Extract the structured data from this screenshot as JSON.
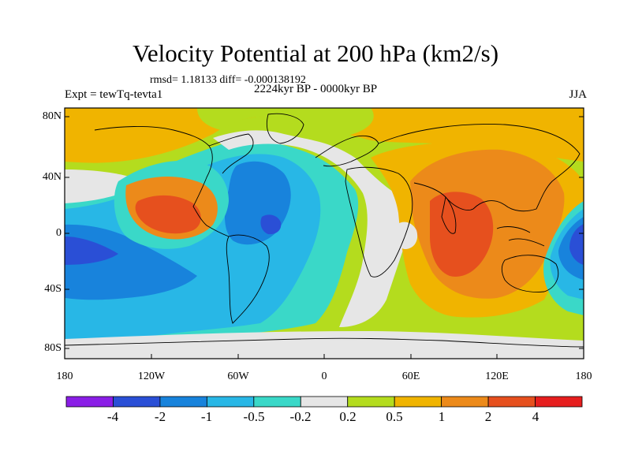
{
  "title": "Velocity Potential at 200 hPa (km2/s)",
  "stats": "rmsd= 1.18133 diff= -0.000138192",
  "experiment": "Expt = tewTq-tevta1",
  "period": "2224kyr BP - 0000kyr BP",
  "season": "JJA",
  "lat_labels": [
    "80N",
    "40N",
    "0",
    "40S",
    "80S"
  ],
  "lon_labels": [
    "180",
    "120W",
    "60W",
    "0",
    "60E",
    "120E",
    "180"
  ],
  "colorbar": {
    "labels": [
      "-4",
      "-2",
      "-1",
      "-0.5",
      "-0.2",
      "0.2",
      "0.5",
      "1",
      "2",
      "4"
    ],
    "colors": [
      "#8a1ee6",
      "#2a4fd6",
      "#1883dc",
      "#28b7e6",
      "#3ad8c8",
      "#e6e6e6",
      "#b4dc1e",
      "#f0b400",
      "#ec8a1a",
      "#e6501e",
      "#e61e1e"
    ]
  }
}
